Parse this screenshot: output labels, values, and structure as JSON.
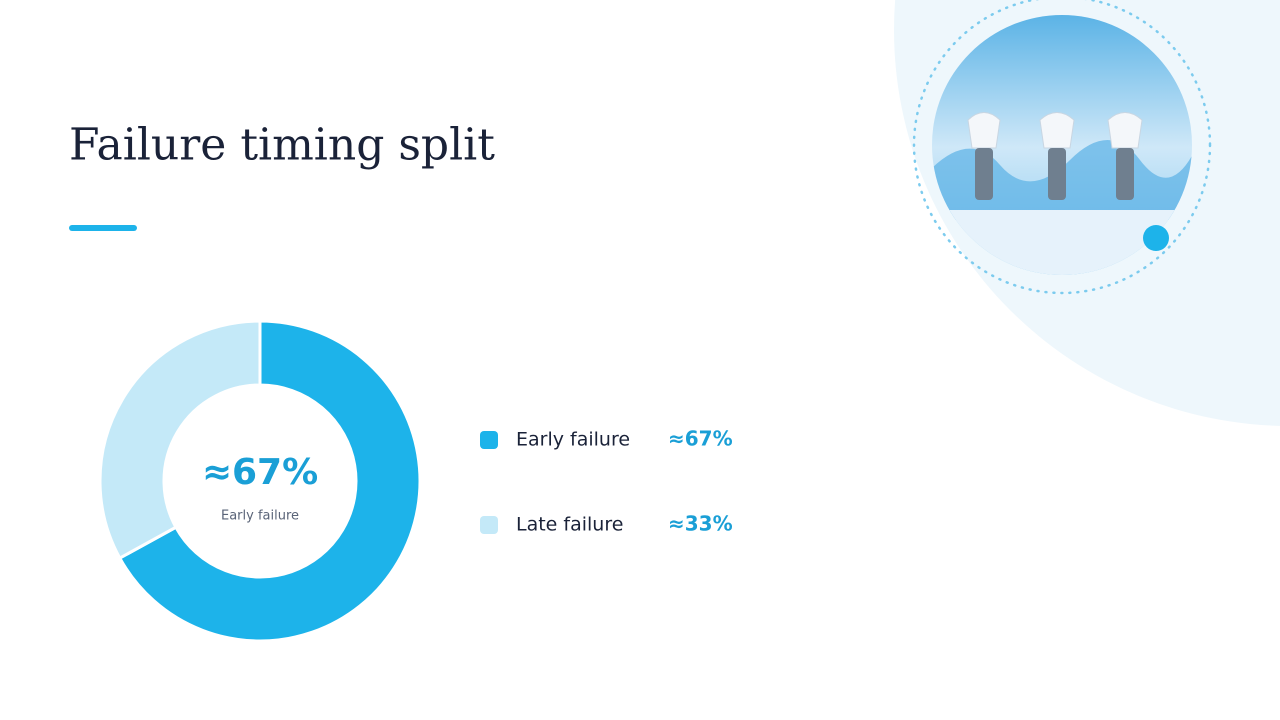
{
  "chart_data": {
    "type": "pie",
    "donut": true,
    "title": "Failure timing split",
    "categories": [
      "Early failure",
      "Late failure"
    ],
    "values": [
      67,
      33
    ],
    "value_labels": [
      "≈67%",
      "≈33%"
    ],
    "colors": [
      "#1db3ea",
      "#c4e9f8"
    ]
  }
}
